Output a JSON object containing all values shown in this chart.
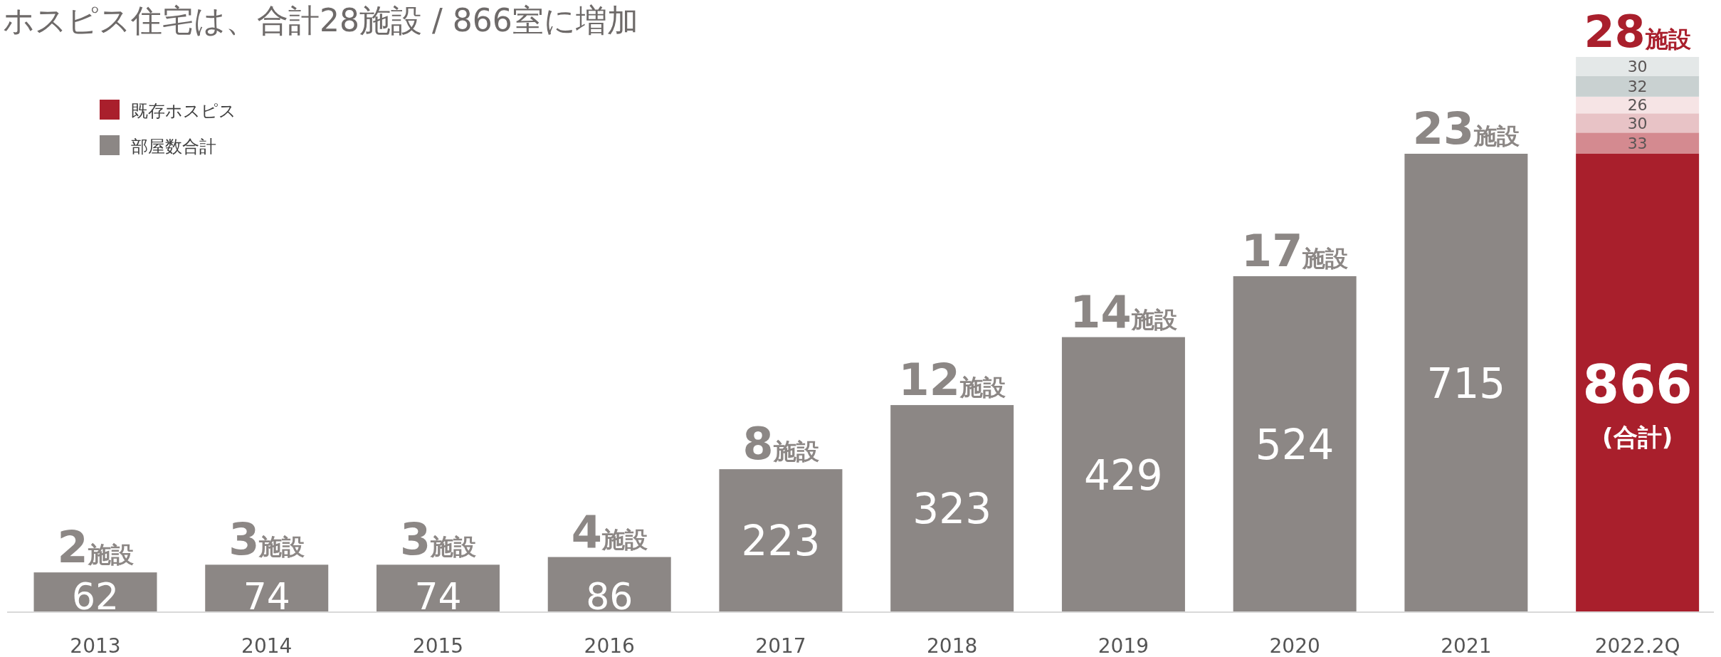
{
  "chart_data": {
    "type": "bar",
    "title": "ホスピス住宅は、合計28施設 / 866室に増加",
    "categories": [
      "2013",
      "2014",
      "2015",
      "2016",
      "2017",
      "2018",
      "2019",
      "2020",
      "2021",
      "2022.2Q"
    ],
    "stacked": true,
    "legend": "top left",
    "series": [
      {
        "name": "部屋数合計",
        "color": "#8c8785",
        "values": [
          62,
          74,
          74,
          86,
          223,
          323,
          429,
          524,
          715,
          null
        ],
        "value_labels": [
          "62",
          "74",
          "74",
          "86",
          "223",
          "323",
          "429",
          "524",
          "715",
          null
        ]
      },
      {
        "name": "既存ホスピス",
        "color": "#a91f2c",
        "values": [
          null,
          null,
          null,
          null,
          null,
          null,
          null,
          null,
          null,
          715
        ],
        "value_labels": [
          null,
          null,
          null,
          null,
          null,
          null,
          null,
          null,
          null,
          null
        ]
      },
      {
        "color": "#d48a90",
        "values": [
          null,
          null,
          null,
          null,
          null,
          null,
          null,
          null,
          null,
          33
        ],
        "value_labels": [
          null,
          null,
          null,
          null,
          null,
          null,
          null,
          null,
          null,
          "33"
        ]
      },
      {
        "color": "#e8c3c6",
        "values": [
          null,
          null,
          null,
          null,
          null,
          null,
          null,
          null,
          null,
          30
        ],
        "value_labels": [
          null,
          null,
          null,
          null,
          null,
          null,
          null,
          null,
          null,
          "30"
        ]
      },
      {
        "color": "#f6e4e5",
        "values": [
          null,
          null,
          null,
          null,
          null,
          null,
          null,
          null,
          null,
          26
        ],
        "value_labels": [
          null,
          null,
          null,
          null,
          null,
          null,
          null,
          null,
          null,
          "26"
        ]
      },
      {
        "color": "#c9d1d1",
        "values": [
          null,
          null,
          null,
          null,
          null,
          null,
          null,
          null,
          null,
          32
        ],
        "value_labels": [
          null,
          null,
          null,
          null,
          null,
          null,
          null,
          null,
          null,
          "32"
        ]
      },
      {
        "color": "#e4e8e8",
        "values": [
          null,
          null,
          null,
          null,
          null,
          null,
          null,
          null,
          null,
          30
        ],
        "value_labels": [
          null,
          null,
          null,
          null,
          null,
          null,
          null,
          null,
          null,
          "30"
        ]
      }
    ],
    "totals": [
      null,
      null,
      null,
      null,
      null,
      null,
      null,
      null,
      null,
      "866"
    ],
    "annotations": [
      {
        "text": "2施設",
        "x": "2013",
        "y": 62
      },
      {
        "text": "3施設",
        "x": "2014",
        "y": 74
      },
      {
        "text": "3施設",
        "x": "2015",
        "y": 74
      },
      {
        "text": "4施設",
        "x": "2016",
        "y": 86
      },
      {
        "text": "8施設",
        "x": "2017",
        "y": 223
      },
      {
        "text": "12施設",
        "x": "2018",
        "y": 323
      },
      {
        "text": "14施設",
        "x": "2019",
        "y": 429
      },
      {
        "text": "17施設",
        "x": "2020",
        "y": 524
      },
      {
        "text": "23施設",
        "x": "2021",
        "y": 715
      },
      {
        "text": "28施設",
        "x": "2022.2Q",
        "y": 866
      },
      "(合計)"
    ]
  }
}
